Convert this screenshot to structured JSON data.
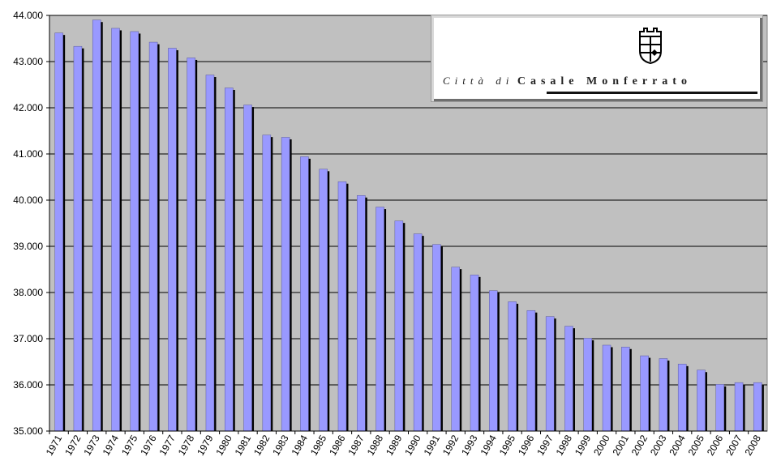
{
  "chart_data": {
    "type": "bar",
    "title": "",
    "xlabel": "",
    "ylabel": "",
    "ylim": [
      35000,
      44000
    ],
    "ytick_values": [
      35000,
      36000,
      37000,
      38000,
      39000,
      40000,
      41000,
      42000,
      43000,
      44000
    ],
    "ytick_labels": [
      "35.000",
      "36.000",
      "37.000",
      "38.000",
      "39.000",
      "40.000",
      "41.000",
      "42.000",
      "43.000",
      "44.000"
    ],
    "grid": true,
    "categories": [
      "1971",
      "1972",
      "1973",
      "1974",
      "1975",
      "1976",
      "1977",
      "1978",
      "1979",
      "1980",
      "1981",
      "1982",
      "1983",
      "1984",
      "1985",
      "1986",
      "1987",
      "1988",
      "1989",
      "1990",
      "1991",
      "1992",
      "1993",
      "1994",
      "1995",
      "1996",
      "1997",
      "1998",
      "1999",
      "2000",
      "2001",
      "2002",
      "2003",
      "2004",
      "2005",
      "2006",
      "2007",
      "2008"
    ],
    "values": [
      43620,
      43330,
      43900,
      43720,
      43650,
      43420,
      43290,
      43080,
      42710,
      42430,
      42060,
      41410,
      41360,
      40940,
      40670,
      40400,
      40100,
      39850,
      39550,
      39270,
      39040,
      38550,
      38380,
      38040,
      37800,
      37610,
      37480,
      37270,
      37010,
      36860,
      36820,
      36630,
      36570,
      36450,
      36320,
      36010,
      36050,
      36050
    ],
    "colors": {
      "bar": "#9999ff",
      "bar_shadow": "#000000",
      "plot_bg": "#c0c0c0",
      "grid": "#000000"
    }
  },
  "logo": {
    "city_prefix": "Città di",
    "city_name": "Casale Monferrato"
  }
}
